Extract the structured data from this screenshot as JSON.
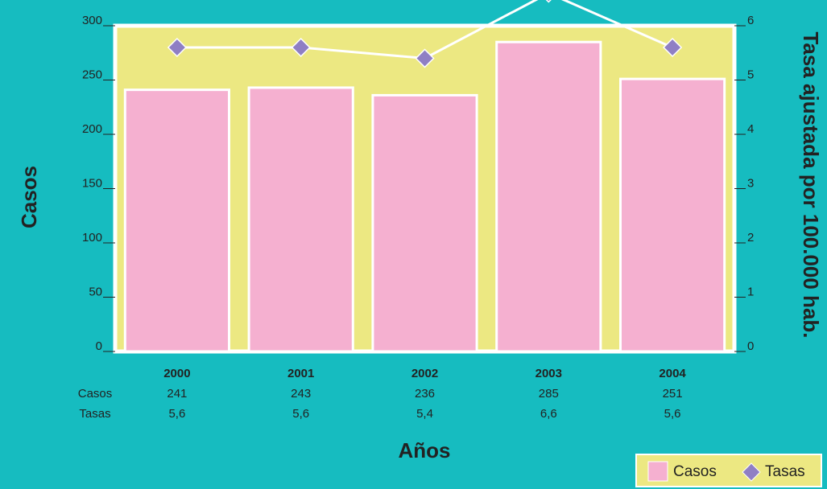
{
  "chart_data": {
    "type": "bar-line",
    "categories": [
      "2000",
      "2001",
      "2002",
      "2003",
      "2004"
    ],
    "series": [
      {
        "name": "Casos",
        "type": "bar",
        "color": "#f5b0d0",
        "values": [
          241,
          243,
          236,
          285,
          251
        ]
      },
      {
        "name": "Tasas",
        "type": "line",
        "axis": "y2",
        "color": "#8f7fc4",
        "values": [
          5.6,
          5.6,
          5.4,
          6.6,
          5.6
        ],
        "value_labels": [
          "5,6",
          "5,6",
          "5,4",
          "6,6",
          "5,6"
        ]
      }
    ],
    "ylabel": "Casos",
    "y2label": "Tasa ajustada por 100.000 hab.",
    "xlabel": "Años",
    "ylim": [
      0,
      300
    ],
    "yticks": [
      0,
      50,
      100,
      150,
      200,
      250,
      300
    ],
    "y2lim": [
      0,
      6
    ],
    "y2ticks": [
      0,
      1,
      2,
      3,
      4,
      5,
      6
    ],
    "legend": "lower right"
  }
}
